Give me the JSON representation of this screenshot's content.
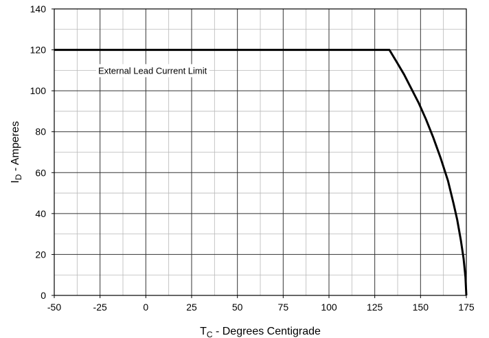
{
  "chart_data": {
    "type": "line",
    "title": "",
    "xlabel": {
      "main": "T",
      "sub": "C",
      "rest": " - Degrees Centigrade"
    },
    "ylabel": {
      "main": "I",
      "sub": "D",
      "rest": " - Amperes"
    },
    "xlim": [
      -50,
      175
    ],
    "ylim": [
      0,
      140
    ],
    "xticks": [
      "-50",
      "-25",
      "0",
      "25",
      "50",
      "75",
      "100",
      "125",
      "150",
      "175"
    ],
    "yticks": [
      "0",
      "20",
      "40",
      "60",
      "80",
      "100",
      "120",
      "140"
    ],
    "minor_grid_x_step": 12.5,
    "minor_grid_y_step": 10,
    "grid": true,
    "series": [
      {
        "x": [
          -50,
          133,
          137,
          141,
          145,
          149,
          153,
          157,
          161,
          165,
          168,
          170,
          172,
          173.5,
          174.5,
          175
        ],
        "y": [
          120,
          120,
          114,
          108,
          101,
          94,
          86,
          77,
          67,
          56,
          45,
          37,
          27,
          18,
          9,
          0
        ]
      }
    ],
    "annotations": [
      {
        "text": "External Lead Current Limit",
        "x": -26,
        "y": 110
      }
    ]
  }
}
